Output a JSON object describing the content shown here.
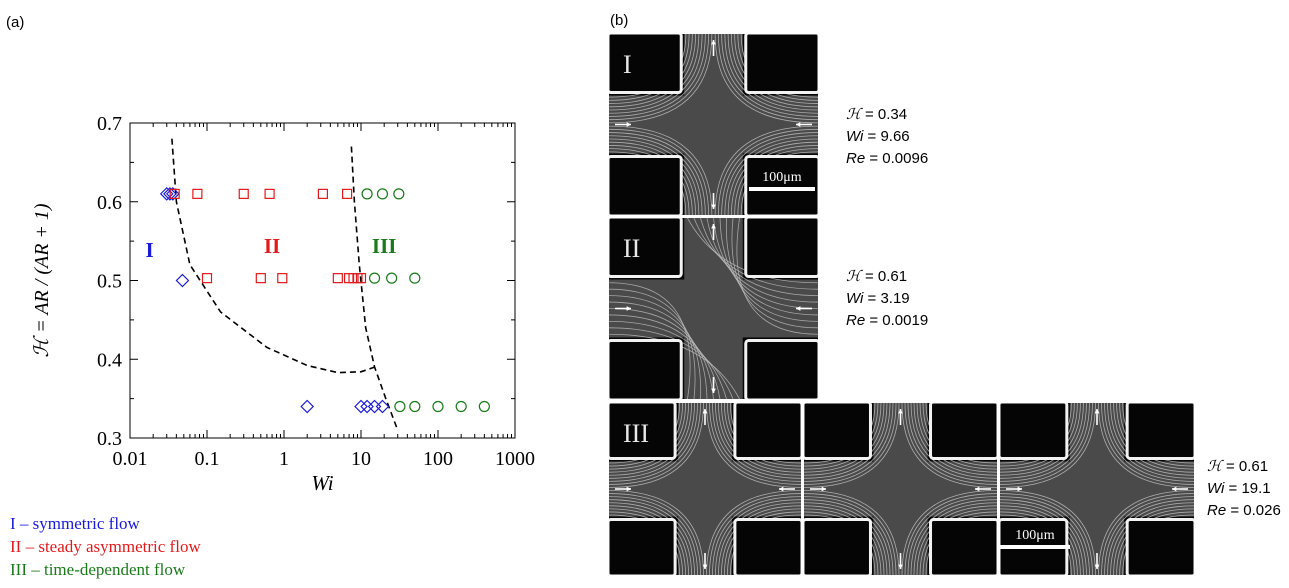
{
  "panel_a_label": "(a)",
  "panel_b_label": "(b)",
  "chart_data": {
    "type": "scatter",
    "xlabel": "Wi",
    "ylabel": "ℋ = AR / (AR + 1)",
    "xscale": "log",
    "xlim": [
      0.01,
      1000
    ],
    "ylim": [
      0.3,
      0.7
    ],
    "xticks": [
      "0.01",
      "0.1",
      "1",
      "10",
      "100",
      "1000"
    ],
    "yticks": [
      "0.3",
      "0.4",
      "0.5",
      "0.6",
      "0.7"
    ],
    "region_labels": [
      {
        "text": "I",
        "color": "#1a1ad8"
      },
      {
        "text": "II",
        "color": "#e31a1c"
      },
      {
        "text": "III",
        "color": "#1a7a1a"
      }
    ],
    "series": [
      {
        "marker": "diamond",
        "color": "#1a1ad8",
        "points": [
          [
            0.03,
            0.61
          ],
          [
            0.033,
            0.61
          ],
          [
            0.036,
            0.61
          ],
          [
            0.048,
            0.5
          ],
          [
            2.0,
            0.34
          ],
          [
            10,
            0.34
          ],
          [
            12,
            0.34
          ],
          [
            15,
            0.34
          ],
          [
            19,
            0.34
          ]
        ]
      },
      {
        "marker": "square",
        "color": "#e31a1c",
        "points": [
          [
            0.038,
            0.61
          ],
          [
            0.075,
            0.61
          ],
          [
            0.3,
            0.61
          ],
          [
            0.65,
            0.61
          ],
          [
            3.2,
            0.61
          ],
          [
            6.6,
            0.61
          ],
          [
            0.1,
            0.503
          ],
          [
            0.5,
            0.503
          ],
          [
            0.95,
            0.503
          ],
          [
            5.0,
            0.503
          ],
          [
            7.0,
            0.503
          ],
          [
            8.0,
            0.503
          ],
          [
            9.0,
            0.503
          ],
          [
            10,
            0.503
          ]
        ]
      },
      {
        "marker": "circle",
        "color": "#1a7a1a",
        "points": [
          [
            12,
            0.61
          ],
          [
            19,
            0.61
          ],
          [
            31,
            0.61
          ],
          [
            15,
            0.503
          ],
          [
            25,
            0.503
          ],
          [
            50,
            0.503
          ],
          [
            32,
            0.34
          ],
          [
            50,
            0.34
          ],
          [
            100,
            0.34
          ],
          [
            200,
            0.34
          ],
          [
            400,
            0.34
          ]
        ]
      }
    ],
    "boundaries": [
      {
        "style": "dashed",
        "points": [
          [
            0.035,
            0.68
          ],
          [
            0.04,
            0.6
          ],
          [
            0.06,
            0.52
          ],
          [
            0.15,
            0.46
          ],
          [
            0.6,
            0.415
          ],
          [
            2.0,
            0.392
          ],
          [
            5.0,
            0.383
          ],
          [
            10,
            0.384
          ],
          [
            15,
            0.39
          ]
        ]
      },
      {
        "style": "dashed",
        "points": [
          [
            7.5,
            0.67
          ],
          [
            8.2,
            0.6
          ],
          [
            9.5,
            0.52
          ],
          [
            11.5,
            0.44
          ],
          [
            15,
            0.39
          ],
          [
            21,
            0.35
          ],
          [
            30,
            0.31
          ]
        ]
      }
    ]
  },
  "legend": [
    {
      "text": "I – symmetric flow",
      "color": "#1a1ad8"
    },
    {
      "text": "II – steady asymmetric flow",
      "color": "#e31a1c"
    },
    {
      "text": "III – time-dependent flow",
      "color": "#1a7a1a"
    }
  ],
  "micrographs": {
    "row1": {
      "label": "I",
      "scale": "100μm",
      "H_sym": "ℋ",
      "H": "= 0.34",
      "Wi_sym": "Wi",
      "Wi": "= 9.66",
      "Re_sym": "Re",
      "Re": "= 0.0096"
    },
    "row2": {
      "label": "II",
      "H_sym": "ℋ",
      "H": "= 0.61",
      "Wi_sym": "Wi",
      "Wi": "= 3.19",
      "Re_sym": "Re",
      "Re": "= 0.0019"
    },
    "row3": {
      "label": "III",
      "scale": "100μm",
      "H_sym": "ℋ",
      "H": "= 0.61",
      "Wi_sym": "Wi",
      "Wi": "= 19.1",
      "Re_sym": "Re",
      "Re": "= 0.026"
    }
  }
}
